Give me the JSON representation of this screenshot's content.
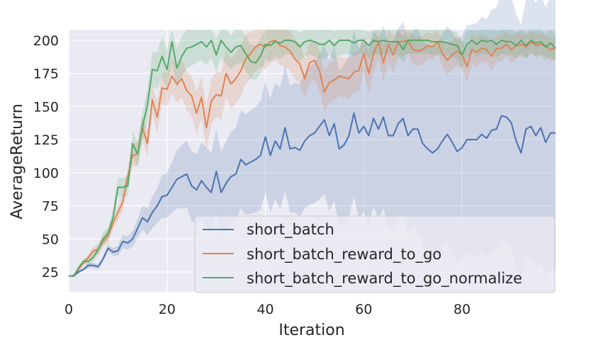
{
  "chart_data": {
    "type": "line",
    "xlabel": "Iteration",
    "ylabel": "AverageReturn",
    "xlim": [
      0,
      99
    ],
    "ylim": [
      10,
      208
    ],
    "x_ticks": [
      0,
      20,
      40,
      60,
      80
    ],
    "y_ticks": [
      25,
      50,
      75,
      100,
      125,
      150,
      175,
      200
    ],
    "grid": true,
    "legend_position": "lower-right",
    "x": [
      0,
      1,
      2,
      3,
      4,
      5,
      6,
      7,
      8,
      9,
      10,
      11,
      12,
      13,
      14,
      15,
      16,
      17,
      18,
      19,
      20,
      21,
      22,
      23,
      24,
      25,
      26,
      27,
      28,
      29,
      30,
      31,
      32,
      33,
      34,
      35,
      36,
      37,
      38,
      39,
      40,
      41,
      42,
      43,
      44,
      45,
      46,
      47,
      48,
      49,
      50,
      51,
      52,
      53,
      54,
      55,
      56,
      57,
      58,
      59,
      60,
      61,
      62,
      63,
      64,
      65,
      66,
      67,
      68,
      69,
      70,
      71,
      72,
      73,
      74,
      75,
      76,
      77,
      78,
      79,
      80,
      81,
      82,
      83,
      84,
      85,
      86,
      87,
      88,
      89,
      90,
      91,
      92,
      93,
      94,
      95,
      96,
      97,
      98,
      99
    ],
    "series": [
      {
        "name": "short_batch",
        "color": "#4c72b0",
        "values": [
          22,
          22,
          25,
          27,
          30,
          30,
          29,
          35,
          43,
          40,
          41,
          48,
          47,
          50,
          58,
          66,
          63,
          70,
          75,
          82,
          83,
          89,
          95,
          97,
          99,
          90,
          87,
          94,
          89,
          85,
          101,
          85,
          92,
          97,
          99,
          110,
          106,
          108,
          110,
          113,
          127,
          113,
          124,
          118,
          134,
          118,
          119,
          117,
          124,
          128,
          130,
          135,
          140,
          128,
          137,
          118,
          121,
          128,
          145,
          130,
          135,
          128,
          141,
          133,
          142,
          128,
          128,
          137,
          141,
          128,
          133,
          133,
          122,
          118,
          115,
          118,
          124,
          129,
          123,
          116,
          119,
          125,
          125,
          125,
          129,
          126,
          132,
          133,
          143,
          142,
          138,
          124,
          115,
          133,
          135,
          128,
          134,
          123,
          130,
          130
        ],
        "lower": [
          22,
          21,
          24,
          26,
          28,
          28,
          27,
          33,
          40,
          37,
          37,
          43,
          42,
          44,
          51,
          57,
          53,
          58,
          62,
          66,
          66,
          70,
          73,
          73,
          74,
          64,
          60,
          65,
          59,
          55,
          69,
          54,
          60,
          63,
          64,
          73,
          68,
          69,
          70,
          72,
          85,
          70,
          80,
          72,
          87,
          70,
          70,
          67,
          73,
          76,
          77,
          80,
          84,
          71,
          79,
          59,
          61,
          67,
          82,
          66,
          70,
          62,
          74,
          65,
          73,
          58,
          57,
          65,
          68,
          54,
          58,
          57,
          45,
          40,
          36,
          38,
          43,
          47,
          40,
          32,
          34,
          39,
          38,
          37,
          40,
          36,
          41,
          41,
          50,
          48,
          43,
          28,
          18,
          35,
          36,
          28,
          33,
          21,
          27,
          26
        ],
        "upper": [
          22,
          23,
          26,
          28,
          32,
          32,
          31,
          37,
          46,
          43,
          45,
          53,
          52,
          56,
          65,
          75,
          73,
          82,
          88,
          98,
          100,
          108,
          117,
          121,
          124,
          116,
          114,
          123,
          119,
          115,
          133,
          116,
          124,
          131,
          134,
          147,
          144,
          147,
          150,
          154,
          169,
          156,
          168,
          164,
          181,
          166,
          168,
          167,
          175,
          180,
          183,
          190,
          196,
          185,
          195,
          177,
          181,
          189,
          208,
          194,
          200,
          194,
          208,
          201,
          211,
          198,
          199,
          209,
          214,
          202,
          208,
          209,
          199,
          196,
          194,
          198,
          205,
          211,
          206,
          200,
          204,
          211,
          212,
          213,
          218,
          216,
          223,
          225,
          236,
          236,
          233,
          220,
          212,
          231,
          234,
          228,
          235,
          225,
          233,
          234
        ]
      },
      {
        "name": "short_batch_reward_to_go",
        "color": "#dd8452",
        "values": [
          22,
          22,
          27,
          32,
          36,
          41,
          42,
          48,
          52,
          62,
          70,
          78,
          97,
          113,
          114,
          134,
          122,
          155,
          142,
          164,
          163,
          173,
          167,
          171,
          162,
          158,
          145,
          157,
          134,
          154,
          159,
          158,
          175,
          167,
          171,
          177,
          186,
          190,
          195,
          197,
          195,
          199,
          200,
          196,
          195,
          192,
          186,
          182,
          171,
          183,
          185,
          177,
          161,
          168,
          170,
          173,
          172,
          171,
          176,
          177,
          190,
          175,
          190,
          199,
          183,
          197,
          189,
          199,
          199,
          200,
          193,
          192,
          193,
          196,
          195,
          199,
          190,
          185,
          189,
          192,
          189,
          180,
          193,
          191,
          194,
          193,
          188,
          194,
          194,
          197,
          193,
          196,
          197,
          195,
          199,
          196,
          197,
          196,
          193,
          194
        ],
        "lower": [
          22,
          21,
          25,
          30,
          33,
          38,
          38,
          44,
          47,
          57,
          64,
          71,
          90,
          105,
          105,
          125,
          112,
          144,
          130,
          152,
          150,
          160,
          153,
          157,
          147,
          143,
          129,
          141,
          117,
          137,
          142,
          140,
          157,
          148,
          152,
          158,
          167,
          171,
          177,
          180,
          178,
          183,
          185,
          181,
          180,
          177,
          171,
          167,
          156,
          168,
          170,
          162,
          146,
          153,
          155,
          158,
          157,
          156,
          161,
          162,
          176,
          160,
          176,
          186,
          169,
          184,
          175,
          187,
          188,
          190,
          182,
          181,
          182,
          186,
          185,
          190,
          180,
          174,
          178,
          181,
          178,
          168,
          182,
          180,
          184,
          183,
          177,
          184,
          184,
          188,
          183,
          187,
          188,
          186,
          191,
          187,
          189,
          188,
          184,
          186
        ],
        "upper": [
          22,
          23,
          29,
          34,
          39,
          44,
          46,
          52,
          57,
          67,
          76,
          85,
          104,
          121,
          123,
          143,
          132,
          166,
          154,
          176,
          176,
          186,
          181,
          185,
          177,
          173,
          161,
          173,
          151,
          171,
          176,
          176,
          193,
          186,
          190,
          196,
          205,
          206,
          208,
          208,
          208,
          208,
          208,
          208,
          208,
          207,
          201,
          197,
          186,
          198,
          200,
          192,
          176,
          183,
          185,
          188,
          187,
          186,
          191,
          192,
          204,
          190,
          204,
          208,
          197,
          208,
          203,
          208,
          208,
          208,
          204,
          203,
          204,
          206,
          205,
          208,
          200,
          196,
          200,
          203,
          200,
          192,
          204,
          202,
          204,
          203,
          199,
          204,
          204,
          206,
          203,
          205,
          206,
          204,
          207,
          205,
          205,
          204,
          202,
          202
        ]
      },
      {
        "name": "short_batch_reward_to_go_normalize",
        "color": "#55a868",
        "values": [
          22,
          22,
          28,
          33,
          33,
          36,
          42,
          50,
          54,
          66,
          89,
          89,
          90,
          122,
          114,
          135,
          151,
          178,
          177,
          188,
          178,
          199,
          179,
          188,
          194,
          195,
          197,
          199,
          195,
          200,
          189,
          200,
          195,
          191,
          195,
          196,
          190,
          184,
          183,
          188,
          197,
          196,
          199,
          198,
          200,
          200,
          199,
          195,
          199,
          200,
          199,
          197,
          197,
          200,
          196,
          200,
          200,
          200,
          198,
          200,
          200,
          196,
          200,
          199,
          200,
          199,
          199,
          199,
          193,
          200,
          200,
          200,
          200,
          200,
          199,
          199,
          199,
          198,
          197,
          196,
          189,
          197,
          200,
          197,
          200,
          199,
          200,
          197,
          200,
          199,
          199,
          196,
          200,
          196,
          200,
          198,
          199,
          195,
          198,
          194
        ],
        "lower": [
          22,
          21,
          26,
          31,
          30,
          33,
          38,
          45,
          49,
          60,
          82,
          82,
          82,
          113,
          104,
          124,
          139,
          165,
          163,
          173,
          163,
          184,
          164,
          173,
          179,
          181,
          183,
          185,
          181,
          187,
          176,
          187,
          182,
          178,
          182,
          183,
          177,
          171,
          170,
          175,
          185,
          184,
          187,
          186,
          189,
          189,
          188,
          184,
          188,
          189,
          188,
          186,
          186,
          189,
          185,
          189,
          189,
          190,
          188,
          190,
          190,
          186,
          190,
          189,
          190,
          189,
          189,
          189,
          183,
          190,
          190,
          190,
          190,
          190,
          189,
          189,
          189,
          188,
          187,
          186,
          179,
          187,
          190,
          187,
          190,
          189,
          190,
          187,
          190,
          189,
          189,
          186,
          190,
          186,
          190,
          188,
          189,
          185,
          188,
          184
        ],
        "upper": [
          22,
          23,
          30,
          35,
          36,
          39,
          46,
          55,
          59,
          72,
          96,
          96,
          98,
          131,
          124,
          146,
          163,
          191,
          191,
          203,
          193,
          208,
          194,
          203,
          208,
          208,
          208,
          208,
          208,
          208,
          202,
          208,
          208,
          204,
          208,
          208,
          203,
          197,
          196,
          201,
          208,
          208,
          208,
          208,
          208,
          208,
          208,
          206,
          208,
          208,
          208,
          208,
          208,
          208,
          207,
          208,
          208,
          208,
          208,
          208,
          208,
          206,
          208,
          208,
          208,
          208,
          208,
          208,
          203,
          208,
          208,
          208,
          208,
          208,
          208,
          208,
          208,
          208,
          207,
          206,
          199,
          207,
          208,
          207,
          208,
          208,
          208,
          207,
          208,
          208,
          208,
          206,
          208,
          206,
          208,
          208,
          208,
          205,
          208,
          204
        ]
      }
    ]
  }
}
